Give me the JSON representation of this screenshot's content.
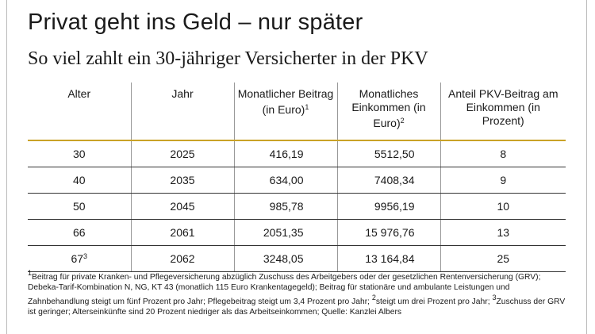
{
  "header": {
    "title": "Privat geht ins Geld – nur später",
    "subtitle": "So viel zahlt ein 30-jähriger Versicherter in der PKV"
  },
  "table": {
    "columns": [
      {
        "text": "Alter"
      },
      {
        "text": "Jahr"
      },
      {
        "text": "Monatlicher Beitrag (in Euro)",
        "sup": "1"
      },
      {
        "text": "Monatliches Einkommen (in Euro)",
        "sup": "2"
      },
      {
        "text": "Anteil PKV-Beitrag am Einkommen (in Prozent)"
      }
    ],
    "rows": [
      [
        {
          "text": "30"
        },
        {
          "text": "2025"
        },
        {
          "text": "416,19"
        },
        {
          "text": "5512,50"
        },
        {
          "text": "8"
        }
      ],
      [
        {
          "text": "40"
        },
        {
          "text": "2035"
        },
        {
          "text": "634,00"
        },
        {
          "text": "7408,34"
        },
        {
          "text": "9"
        }
      ],
      [
        {
          "text": "50"
        },
        {
          "text": "2045"
        },
        {
          "text": "985,78"
        },
        {
          "text": "9956,19"
        },
        {
          "text": "10"
        }
      ],
      [
        {
          "text": "66"
        },
        {
          "text": "2061"
        },
        {
          "text": "2051,35"
        },
        {
          "text": "15 976,76"
        },
        {
          "text": "13"
        }
      ],
      [
        {
          "text": "67",
          "sup": "3"
        },
        {
          "text": "2062"
        },
        {
          "text": "3248,05"
        },
        {
          "text": "13 164,84"
        },
        {
          "text": "25"
        }
      ]
    ]
  },
  "footnotes": [
    {
      "sup": "1",
      "text": "Beitrag für private Kranken- und Pflegeversicherung abzüglich Zuschuss des Arbeitgebers oder der gesetzlichen Rentenversicherung (GRV); Debeka-Tarif-Kombination N, NG, KT 43 (monatlich 115 Euro Krankentagegeld); Beitrag für stationäre und ambulante Leistungen und Zahnbehandlung steigt um fünf Prozent pro Jahr; Pflegebeitrag steigt um 3,4 Prozent pro Jahr;"
    },
    {
      "sup": "2",
      "text": "steigt um drei Prozent pro Jahr;"
    },
    {
      "sup": "3",
      "text": "Zuschuss der GRV ist geringer; Alterseinkünfte sind 20 Prozent niedriger als das Arbeitseinkommen; Quelle: Kanzlei Albers"
    }
  ]
}
